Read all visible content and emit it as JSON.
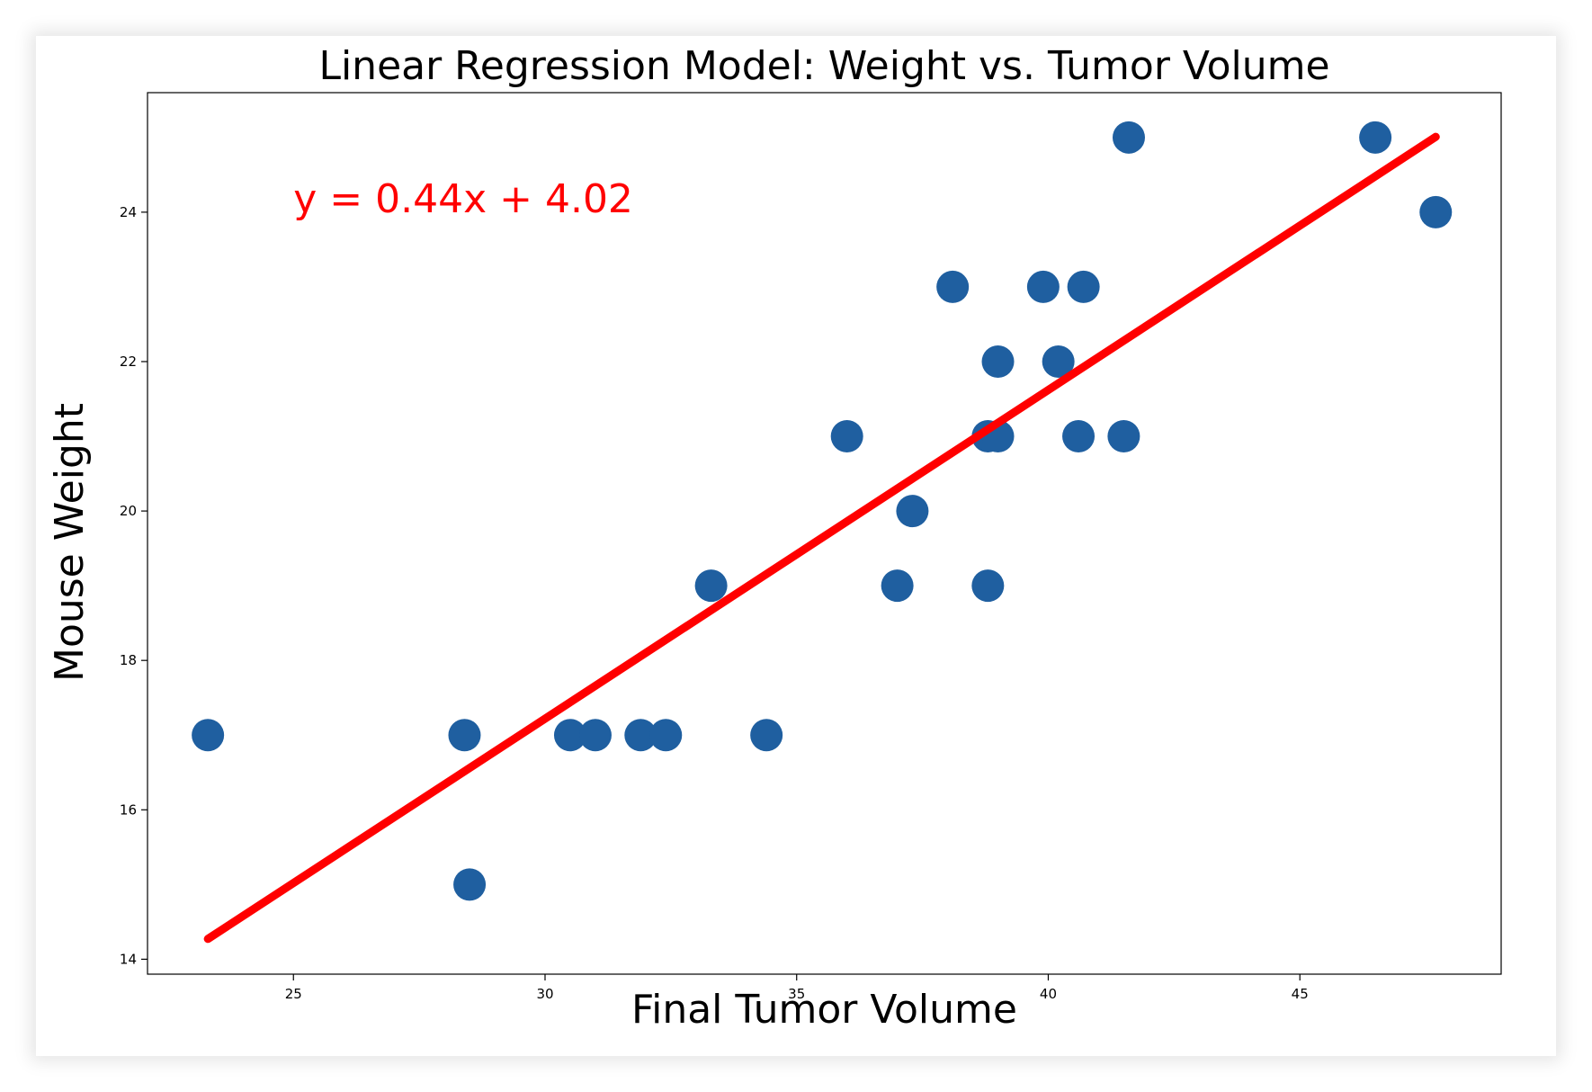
{
  "chart_data": {
    "type": "scatter",
    "title": "Linear Regression Model: Weight vs. Tumor Volume",
    "xlabel": "Final Tumor Volume",
    "ylabel": "Mouse Weight",
    "xlim": [
      22.1,
      49.0
    ],
    "ylim": [
      13.8,
      25.6
    ],
    "x_ticks": [
      25,
      30,
      35,
      40,
      45
    ],
    "y_ticks": [
      14,
      16,
      18,
      20,
      22,
      24
    ],
    "grid": false,
    "points": [
      {
        "x": 23.3,
        "y": 17
      },
      {
        "x": 28.4,
        "y": 17
      },
      {
        "x": 28.5,
        "y": 15
      },
      {
        "x": 30.5,
        "y": 17
      },
      {
        "x": 31.0,
        "y": 17
      },
      {
        "x": 31.9,
        "y": 17
      },
      {
        "x": 32.4,
        "y": 17
      },
      {
        "x": 33.3,
        "y": 19
      },
      {
        "x": 34.4,
        "y": 17
      },
      {
        "x": 36.0,
        "y": 21
      },
      {
        "x": 37.0,
        "y": 19
      },
      {
        "x": 37.3,
        "y": 20
      },
      {
        "x": 38.1,
        "y": 23
      },
      {
        "x": 38.8,
        "y": 21
      },
      {
        "x": 38.8,
        "y": 19
      },
      {
        "x": 39.0,
        "y": 21
      },
      {
        "x": 39.0,
        "y": 22
      },
      {
        "x": 39.9,
        "y": 23
      },
      {
        "x": 40.2,
        "y": 22
      },
      {
        "x": 40.6,
        "y": 21
      },
      {
        "x": 40.7,
        "y": 23
      },
      {
        "x": 41.5,
        "y": 21
      },
      {
        "x": 41.6,
        "y": 25
      },
      {
        "x": 46.5,
        "y": 25
      },
      {
        "x": 47.7,
        "y": 24
      }
    ],
    "regression": {
      "slope": 0.44,
      "intercept": 4.02,
      "x_range": [
        23.3,
        47.7
      ],
      "equation_label": "y = 0.44x + 4.02",
      "label_position": {
        "x": 25,
        "y": 24
      }
    },
    "colors": {
      "points": "#1f5fa0",
      "line": "#ff0000",
      "annotation": "#ff0000"
    }
  }
}
